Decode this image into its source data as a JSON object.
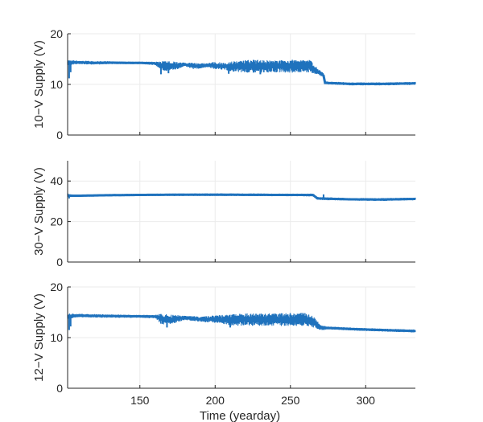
{
  "chart_data": [
    {
      "type": "line",
      "ylabel": "10−V Supply (V)",
      "xlabel": "",
      "xlim": [
        102,
        333
      ],
      "ylim": [
        0,
        20
      ],
      "yticks": [
        0,
        10,
        20
      ],
      "xticks": [
        150,
        200,
        250,
        300
      ],
      "show_xtick_labels": false,
      "grid": true,
      "color": "#1f72bd",
      "series": [
        {
          "band": [
            [
              102,
              13.8,
              14.8
            ],
            [
              110,
              14.0,
              14.7
            ],
            [
              120,
              13.9,
              14.6
            ],
            [
              130,
              14.0,
              14.6
            ],
            [
              140,
              14.0,
              14.5
            ],
            [
              150,
              14.0,
              14.5
            ],
            [
              160,
              13.8,
              14.5
            ],
            [
              165,
              12.6,
              14.6
            ],
            [
              170,
              12.8,
              14.6
            ],
            [
              175,
              13.0,
              14.4
            ],
            [
              180,
              13.6,
              14.3
            ],
            [
              185,
              13.0,
              14.3
            ],
            [
              190,
              13.1,
              14.2
            ],
            [
              195,
              13.4,
              14.2
            ],
            [
              200,
              13.0,
              14.5
            ],
            [
              205,
              12.9,
              14.3
            ],
            [
              210,
              12.6,
              14.5
            ],
            [
              215,
              12.4,
              14.6
            ],
            [
              220,
              12.3,
              14.8
            ],
            [
              230,
              12.3,
              14.9
            ],
            [
              240,
              12.4,
              14.7
            ],
            [
              250,
              12.3,
              14.9
            ],
            [
              258,
              12.4,
              14.8
            ],
            [
              263,
              12.3,
              14.9
            ],
            [
              268,
              12.0,
              13.2
            ],
            [
              272,
              11.3,
              12.2
            ],
            [
              273,
              10.0,
              10.6
            ],
            [
              290,
              9.8,
              10.4
            ],
            [
              310,
              9.8,
              10.4
            ],
            [
              333,
              9.9,
              10.5
            ]
          ],
          "dips": [
            [
              103,
              11.2
            ],
            [
              104,
              12.4
            ],
            [
              164,
              12.0
            ],
            [
              169,
              12.2
            ],
            [
              209,
              12.1
            ],
            [
              230,
              12.0
            ]
          ]
        }
      ]
    },
    {
      "type": "line",
      "ylabel": "30−V Supply (V)",
      "xlabel": "",
      "xlim": [
        102,
        333
      ],
      "ylim": [
        0,
        50
      ],
      "yticks": [
        0,
        20,
        40
      ],
      "xticks": [
        150,
        200,
        250,
        300
      ],
      "show_xtick_labels": false,
      "grid": true,
      "color": "#1f72bd",
      "series": [
        {
          "band": [
            [
              102,
              31.8,
              34.0
            ],
            [
              104,
              32.1,
              33.4
            ],
            [
              110,
              32.2,
              33.3
            ],
            [
              130,
              32.4,
              33.6
            ],
            [
              160,
              32.6,
              33.8
            ],
            [
              200,
              32.6,
              33.9
            ],
            [
              240,
              32.5,
              33.8
            ],
            [
              265,
              32.4,
              33.8
            ],
            [
              268,
              30.6,
              32.2
            ],
            [
              290,
              30.3,
              31.6
            ],
            [
              310,
              30.1,
              31.6
            ],
            [
              333,
              30.5,
              31.8
            ]
          ],
          "dips": [
            [
              103,
              31.4
            ],
            [
              272,
              33.4
            ]
          ]
        }
      ]
    },
    {
      "type": "line",
      "ylabel": "12−V Supply (V)",
      "xlabel": "Time (yearday)",
      "xlim": [
        102,
        333
      ],
      "ylim": [
        0,
        20
      ],
      "yticks": [
        0,
        10,
        20
      ],
      "xticks": [
        150,
        200,
        250,
        300
      ],
      "show_xtick_labels": true,
      "grid": true,
      "color": "#1f72bd",
      "series": [
        {
          "band": [
            [
              102,
              13.7,
              14.8
            ],
            [
              110,
              14.0,
              14.7
            ],
            [
              130,
              13.9,
              14.6
            ],
            [
              150,
              13.9,
              14.5
            ],
            [
              160,
              13.8,
              14.5
            ],
            [
              165,
              12.4,
              14.8
            ],
            [
              170,
              12.6,
              14.6
            ],
            [
              180,
              13.5,
              14.3
            ],
            [
              190,
              13.1,
              14.2
            ],
            [
              200,
              12.9,
              14.4
            ],
            [
              210,
              12.4,
              14.6
            ],
            [
              220,
              12.3,
              14.8
            ],
            [
              240,
              12.3,
              14.8
            ],
            [
              260,
              12.3,
              14.9
            ],
            [
              265,
              12.0,
              14.4
            ],
            [
              270,
              11.4,
              12.5
            ],
            [
              275,
              11.6,
              12.2
            ],
            [
              290,
              11.4,
              12.0
            ],
            [
              310,
              11.2,
              11.8
            ],
            [
              333,
              11.0,
              11.6
            ]
          ],
          "dips": [
            [
              103,
              11.5
            ],
            [
              104,
              12.2
            ],
            [
              168,
              12.0
            ],
            [
              210,
              12.0
            ]
          ]
        }
      ]
    }
  ]
}
